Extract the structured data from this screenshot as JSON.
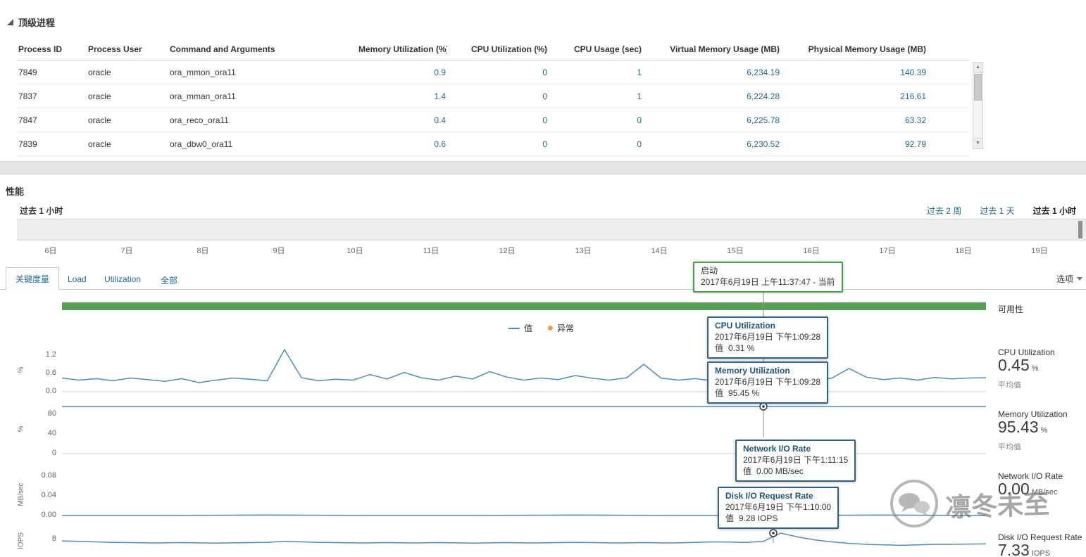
{
  "top_processes": {
    "section_title": "顶级进程",
    "columns": [
      "Process ID",
      "Process User",
      "Command and Arguments",
      "Memory Utilization (%)",
      "CPU Utilization (%)",
      "CPU Usage (sec)",
      "Virtual Memory Usage (MB)",
      "Physical Memory Usage (MB)"
    ],
    "rows": [
      [
        "7849",
        "oracle",
        "ora_mmon_ora11",
        "0.9",
        "0",
        "1",
        "6,234.19",
        "140.39"
      ],
      [
        "7837",
        "oracle",
        "ora_mman_ora11",
        "1.4",
        "0",
        "1",
        "6,224.28",
        "216.61"
      ],
      [
        "7847",
        "oracle",
        "ora_reco_ora11",
        "0.4",
        "0",
        "0",
        "6,225.78",
        "63.32"
      ],
      [
        "7839",
        "oracle",
        "ora_dbw0_ora11",
        "0.6",
        "0",
        "0",
        "6,230.52",
        "92.79"
      ]
    ]
  },
  "performance": {
    "section_title": "性能",
    "range_label": "过去 1 小时",
    "range_links": [
      "过去 2 周",
      "过去 1 天",
      "过去 1 小时"
    ],
    "timeline_dates": [
      "6日",
      "7日",
      "8日",
      "9日",
      "10日",
      "11日",
      "12日",
      "13日",
      "14日",
      "15日",
      "16日",
      "17日",
      "18日",
      "19日"
    ],
    "tabs": [
      "关键度量",
      "Load",
      "Utilization",
      "全部"
    ],
    "options_label": "选项",
    "legend": {
      "value_label": "值",
      "anomaly_label": "异常"
    },
    "availability_label": "可用性",
    "startup_tooltip": {
      "title": "启动",
      "text": "2017年6月19日 上午11:37:47 - 当前"
    }
  },
  "tooltips": {
    "cpu": {
      "title": "CPU Utilization",
      "time": "2017年6月19日 下午1:09:28",
      "value_label": "值",
      "value": "0.31 %"
    },
    "memory": {
      "title": "Memory Utilization",
      "time": "2017年6月19日 下午1:09:28",
      "value_label": "值",
      "value": "95.45 %"
    },
    "network": {
      "title": "Network I/O Rate",
      "time": "2017年6月19日 下午1:11:15",
      "value_label": "值",
      "value": "0.00 MB/sec"
    },
    "disk": {
      "title": "Disk I/O Request Rate",
      "time": "2017年6月19日 下午1:10:00",
      "value_label": "值",
      "value": "9.28 IOPS"
    }
  },
  "metrics": {
    "cpu": {
      "name": "CPU Utilization",
      "value": "0.45",
      "unit": "%",
      "avg_label": "平均值"
    },
    "memory": {
      "name": "Memory Utilization",
      "value": "95.43",
      "unit": "%",
      "avg_label": "平均值"
    },
    "network": {
      "name": "Network I/O Rate",
      "value": "0.00",
      "unit": "MB/sec"
    },
    "disk": {
      "name": "Disk I/O Request Rate",
      "value": "7.33",
      "unit": "IOPS"
    }
  },
  "watermark": {
    "text": "凛冬未至"
  },
  "colors": {
    "accent_blue": "#1b6ba3",
    "chart_line": "#4e8cbf",
    "availability_green": "#55a055",
    "anomaly_orange": "#e8a33d",
    "tooltip_border_blue": "#2c6288",
    "tooltip_border_green": "#4f9d4f"
  },
  "chart_data": [
    {
      "type": "line",
      "id": "cpu-utilization",
      "series_name": "CPU Utilization",
      "xlabel": "",
      "ylabel": "%",
      "ylim": [
        0,
        1.43
      ],
      "ytick_values": [
        0,
        0.6,
        1.2
      ],
      "ytick_labels": [
        "0.0",
        "0.6",
        "1.2"
      ],
      "values": [
        0.45,
        0.38,
        0.43,
        0.36,
        0.45,
        0.4,
        0.34,
        0.43,
        0.3,
        0.38,
        0.45,
        0.41,
        0.36,
        1.38,
        0.46,
        0.36,
        0.41,
        0.38,
        0.56,
        0.42,
        0.63,
        0.46,
        0.38,
        0.51,
        0.42,
        0.66,
        0.48,
        0.38,
        0.45,
        0.4,
        0.53,
        0.44,
        0.38,
        0.46,
        0.9,
        0.45,
        0.38,
        0.43,
        0.36,
        0.46,
        0.4,
        0.45,
        0.38,
        0.43,
        0.36,
        0.45,
        0.76,
        0.48,
        0.4,
        0.45,
        0.38,
        0.47,
        0.42,
        0.45,
        0.46
      ]
    },
    {
      "type": "line",
      "id": "memory-utilization",
      "series_name": "Memory Utilization",
      "xlabel": "",
      "ylabel": "%",
      "ylim": [
        0,
        100
      ],
      "ytick_values": [
        0,
        40,
        80
      ],
      "ytick_labels": [
        "0",
        "40",
        "80"
      ],
      "values": [
        95.4,
        95.45,
        95.4,
        95.42,
        95.4,
        95.44,
        95.41,
        95.43,
        95.4,
        95.43
      ]
    },
    {
      "type": "line",
      "id": "network-io-rate",
      "series_name": "Network I/O Rate",
      "xlabel": "",
      "ylabel": "MB/sec",
      "ylim": [
        0,
        0.0871
      ],
      "ytick_values": [
        0,
        0.04,
        0.08
      ],
      "ytick_labels": [
        "0.00",
        "0.04",
        "0.08"
      ],
      "values": [
        0,
        0,
        0.001,
        0,
        0,
        0.001,
        0,
        0,
        0.001,
        0
      ]
    },
    {
      "type": "line",
      "id": "disk-io-request-rate",
      "series_name": "Disk I/O Request Rate",
      "xlabel": "",
      "ylabel": "IOPS",
      "ylim": [
        0,
        11.14
      ],
      "ytick_values": [
        8
      ],
      "ytick_labels": [
        "8"
      ],
      "values": [
        7.7,
        7.6,
        7.5,
        7.4,
        7.35,
        7.3,
        7.3,
        7.35,
        7.3,
        7.25,
        7.3,
        7.35,
        7.4,
        7.6,
        7.5,
        7.4,
        7.35,
        7.3,
        7.3,
        7.35,
        7.3,
        7.3,
        7.35,
        7.3,
        7.25,
        7.3,
        7.35,
        7.3,
        7.3,
        7.35,
        7.4,
        7.35,
        7.3,
        7.3,
        7.35,
        7.3,
        7.3,
        7.4,
        7.5,
        7.45,
        7.4,
        7.6,
        9.28,
        8.5,
        7.9,
        7.5,
        7.2,
        7.0,
        6.9,
        6.8,
        6.9,
        7.0,
        7.0,
        7.05,
        7.1
      ]
    }
  ]
}
